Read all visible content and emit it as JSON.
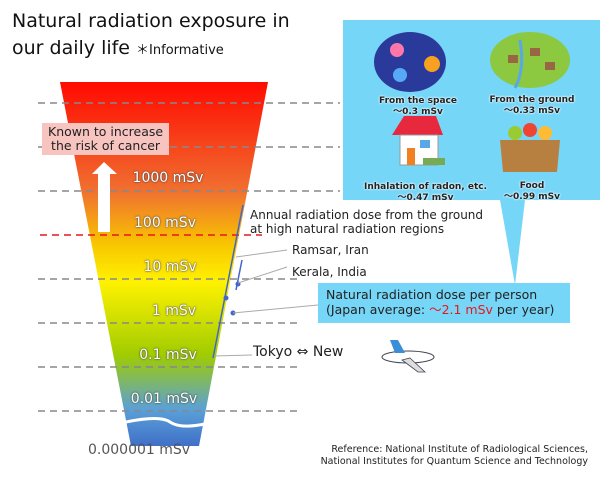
{
  "title": {
    "line1": "Natural radiation exposure in",
    "line2": "our daily life",
    "note": "＊Informative"
  },
  "scale": {
    "levels": [
      "1000 mSv",
      "100 mSv",
      "10 mSv",
      "1 mSv",
      "0.1 mSv",
      "0.01 mSv"
    ],
    "bottom": "0.000001 mSv"
  },
  "cancer_box": {
    "line1": "Known to increase",
    "line2": "the risk of cancer"
  },
  "annotations": {
    "high_regions_1": "Annual radiation dose from the ground",
    "high_regions_2": "at high natural radiation regions",
    "ramsar": "Ramsar, Iran",
    "kerala": "Kerala, India",
    "flight": "Tokyo ⇔ New"
  },
  "callout": {
    "line1": "Natural radiation dose per person",
    "line2_pre": "(Japan average: ",
    "line2_value": "～2.1 mSv",
    "line2_post": " per year)"
  },
  "sources": [
    {
      "name": "From the space",
      "value": "～0.3 mSv",
      "icon": "space-icon"
    },
    {
      "name": "From the ground",
      "value": "～0.33 mSv",
      "icon": "village-icon"
    },
    {
      "name": "Inhalation of radon, etc.",
      "value": "～0.47 mSv",
      "icon": "house-icon"
    },
    {
      "name": "Food",
      "value": "～0.99 mSv",
      "icon": "food-box-icon"
    }
  ],
  "reference": {
    "line1": "Reference: National Institute of Radiological Sciences,",
    "line2": "National Institutes for Quantum Science and Technology"
  },
  "colors": {
    "bubble": "#76d6f7",
    "highlight": "#e8161b",
    "threshold_line": "#e8161b"
  }
}
